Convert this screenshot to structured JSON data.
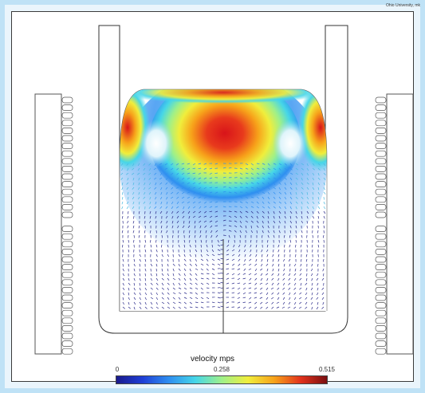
{
  "credit_text": "Ohio University, mk",
  "colorbar": {
    "title": "velocity mps",
    "min_label": "0",
    "mid_label": "0.258",
    "max_label": "0.515",
    "colors": [
      "#1a1a8c",
      "#1f3fd6",
      "#2f8ff0",
      "#46d6e8",
      "#9ef08a",
      "#f0ee3c",
      "#f7a21a",
      "#e2321c",
      "#7a0f12"
    ]
  },
  "palette": {
    "frame_bg": "#eaf5fc",
    "frame_border": "#bfe2f6",
    "coil_stroke": "#555555",
    "vector_low": "#2a2a8a"
  }
}
